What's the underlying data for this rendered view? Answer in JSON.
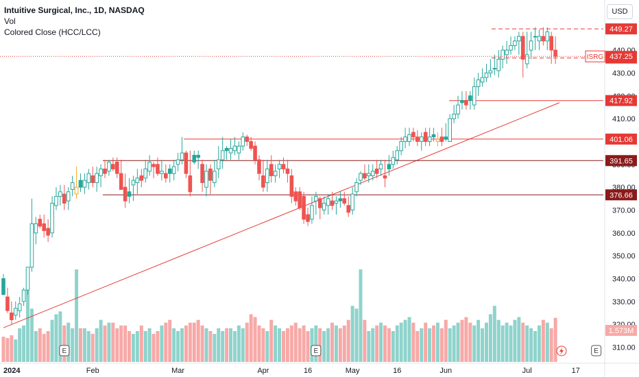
{
  "legend": {
    "title": "Intuitive Surgical, Inc., 1D, NASDAQ",
    "vol": "Vol",
    "indicator": "Colored Close (HCC/LCC)"
  },
  "currency": "USD",
  "colors": {
    "up": "#26a69a",
    "down": "#ef5350",
    "orange": "#f5a623",
    "vol_up": "#8fd3cc",
    "vol_down": "#f7a9a7",
    "level_red": "#e53935",
    "level_dark": "#8b1a1a",
    "axis_text": "#131722"
  },
  "chart_data": {
    "type": "candlestick",
    "title": "Intuitive Surgical, Inc., 1D, NASDAQ",
    "y_range": [
      307,
      457
    ],
    "y_ticks": [
      310,
      320,
      330,
      340,
      350,
      360,
      370,
      380,
      390,
      400,
      410,
      420,
      430,
      440
    ],
    "x_tick_labels": [
      "2024",
      "Feb",
      "Mar",
      "Apr",
      "16",
      "May",
      "16",
      "Jun",
      "Jul",
      "17"
    ],
    "x_tick_dates": [
      "2024-01-02",
      "2024-02-01",
      "2024-03-01",
      "2024-04-01",
      "2024-04-16",
      "2024-05-01",
      "2024-05-16",
      "2024-06-03",
      "2024-07-01",
      "2024-07-17"
    ],
    "first_date": "2024-01-02",
    "opens": [
      340,
      332,
      325,
      324,
      326,
      330,
      335,
      345,
      360,
      366,
      364,
      362,
      360,
      372,
      376,
      377,
      374,
      379,
      377,
      383,
      380,
      382,
      385,
      382,
      385,
      388,
      387,
      390,
      391,
      386,
      380,
      378,
      381,
      382,
      385,
      384,
      387,
      390,
      390,
      386,
      386,
      388,
      386,
      390,
      392,
      395,
      385,
      394,
      394,
      390,
      380,
      388,
      382,
      388,
      392,
      397,
      395,
      396,
      395,
      398,
      402,
      400,
      398,
      392,
      385,
      382,
      390,
      385,
      388,
      390,
      388,
      385,
      378,
      378,
      376,
      368,
      366,
      374,
      375,
      370,
      372,
      374,
      373,
      375,
      375,
      372,
      370,
      378,
      383,
      386,
      385,
      385,
      388,
      388,
      385,
      390,
      390,
      392,
      396,
      400,
      400,
      404,
      402,
      400,
      404,
      400,
      403,
      400,
      402,
      402,
      400,
      410,
      412,
      418,
      418,
      420,
      416,
      424,
      426,
      428,
      430,
      432,
      431,
      436,
      438,
      440,
      442,
      444,
      446,
      434,
      440,
      446,
      444,
      446,
      444,
      446,
      440
    ],
    "highs": [
      342,
      336,
      330,
      330,
      332,
      336,
      342,
      375,
      367,
      368,
      368,
      366,
      376,
      380,
      381,
      381,
      380,
      385,
      389,
      386,
      386,
      388,
      389,
      389,
      390,
      392,
      392,
      393,
      393,
      392,
      386,
      384,
      385,
      388,
      388,
      392,
      394,
      391,
      393,
      392,
      390,
      390,
      392,
      395,
      402,
      396,
      396,
      396,
      396,
      392,
      390,
      390,
      392,
      398,
      402,
      398,
      401,
      402,
      400,
      404,
      403,
      402,
      400,
      394,
      392,
      392,
      394,
      390,
      392,
      393,
      392,
      388,
      380,
      380,
      378,
      371,
      376,
      378,
      376,
      376,
      377,
      378,
      376,
      378,
      378,
      376,
      380,
      384,
      387,
      390,
      390,
      390,
      392,
      392,
      392,
      394,
      396,
      398,
      402,
      406,
      406,
      406,
      405,
      404,
      406,
      406,
      406,
      404,
      406,
      408,
      412,
      416,
      420,
      422,
      422,
      422,
      428,
      430,
      432,
      434,
      436,
      438,
      440,
      442,
      444,
      446,
      446,
      448,
      448,
      448,
      448,
      450,
      449,
      450,
      450,
      448,
      446
    ],
    "lows": [
      335,
      325,
      320,
      322,
      323,
      328,
      333,
      343,
      355,
      362,
      358,
      356,
      358,
      370,
      372,
      370,
      370,
      376,
      375,
      378,
      377,
      379,
      380,
      378,
      380,
      384,
      385,
      387,
      384,
      380,
      371,
      373,
      374,
      377,
      380,
      382,
      385,
      384,
      385,
      383,
      382,
      382,
      383,
      387,
      390,
      384,
      376,
      390,
      388,
      378,
      376,
      377,
      380,
      384,
      388,
      392,
      392,
      394,
      392,
      396,
      398,
      396,
      390,
      383,
      378,
      378,
      382,
      382,
      384,
      386,
      382,
      373,
      372,
      370,
      364,
      363,
      364,
      368,
      366,
      368,
      368,
      370,
      368,
      371,
      372,
      367,
      368,
      376,
      381,
      383,
      382,
      383,
      384,
      385,
      380,
      385,
      388,
      390,
      394,
      397,
      398,
      400,
      398,
      396,
      398,
      398,
      400,
      398,
      398,
      400,
      400,
      408,
      410,
      414,
      414,
      414,
      414,
      420,
      424,
      426,
      428,
      429,
      428,
      432,
      434,
      438,
      440,
      438,
      428,
      432,
      436,
      440,
      440,
      442,
      440,
      434,
      434
    ],
    "closes": [
      333,
      326,
      322,
      327,
      329,
      335,
      345,
      364,
      364,
      363,
      361,
      359,
      373,
      376,
      378,
      373,
      378,
      382,
      380,
      380,
      383,
      386,
      382,
      386,
      388,
      386,
      391,
      388,
      386,
      379,
      374,
      376,
      383,
      384,
      383,
      388,
      391,
      389,
      386,
      387,
      384,
      386,
      389,
      392,
      395,
      386,
      378,
      391,
      393,
      382,
      387,
      383,
      387,
      392,
      396,
      396,
      397,
      398,
      398,
      402,
      400,
      397,
      392,
      386,
      380,
      388,
      385,
      387,
      390,
      388,
      386,
      376,
      374,
      371,
      366,
      365,
      372,
      376,
      371,
      373,
      375,
      372,
      374,
      374,
      373,
      369,
      377,
      382,
      386,
      384,
      386,
      387,
      386,
      390,
      384,
      388,
      393,
      396,
      400,
      402,
      403,
      402,
      400,
      402,
      400,
      402,
      402,
      401,
      400,
      401,
      410,
      412,
      416,
      417,
      416,
      418,
      424,
      427,
      428,
      430,
      431,
      432,
      436,
      440,
      440,
      442,
      444,
      446,
      436,
      438,
      444,
      446,
      446,
      444,
      448,
      440,
      437.25
    ],
    "volume": [
      0.9,
      0.85,
      0.95,
      0.8,
      1.2,
      1.3,
      3.2,
      1.9,
      1.1,
      1.2,
      1.0,
      1.1,
      1.5,
      1.7,
      1.8,
      1.3,
      1.4,
      1.2,
      3.3,
      1.2,
      1.2,
      1.1,
      1.0,
      1.2,
      1.5,
      1.3,
      1.4,
      1.4,
      1.2,
      1.3,
      1.3,
      1.1,
      1.0,
      1.1,
      1.3,
      1.1,
      1.2,
      1.0,
      1.1,
      1.3,
      1.4,
      1.5,
      1.2,
      1.1,
      1.2,
      1.3,
      1.4,
      1.4,
      1.5,
      1.3,
      1.2,
      1.1,
      1.0,
      1.2,
      1.1,
      1.2,
      1.2,
      1.1,
      1.3,
      1.2,
      1.4,
      1.7,
      1.6,
      1.3,
      1.2,
      1.1,
      1.5,
      1.3,
      1.2,
      1.1,
      1.2,
      1.3,
      1.4,
      1.2,
      1.3,
      1.1,
      1.2,
      1.3,
      1.2,
      1.1,
      1.2,
      1.4,
      1.3,
      1.2,
      1.3,
      1.5,
      2.0,
      1.9,
      3.3,
      1.5,
      1.1,
      1.2,
      1.3,
      1.4,
      1.3,
      1.2,
      1.1,
      1.3,
      1.4,
      1.5,
      1.6,
      1.4,
      1.1,
      1.2,
      1.4,
      1.2,
      1.3,
      1.4,
      1.2,
      1.5,
      1.2,
      1.3,
      1.4,
      1.5,
      1.6,
      1.4,
      1.3,
      1.5,
      1.2,
      1.4,
      1.7,
      2.0,
      1.5,
      1.3,
      1.4,
      1.3,
      1.5,
      1.6,
      1.4,
      1.3,
      1.2,
      1.1,
      1.3,
      1.5,
      1.4,
      1.2,
      1.573
    ],
    "trendline": {
      "from": {
        "date": "2024-01-02",
        "value": 318.5
      },
      "to": {
        "date": "2024-07-11",
        "value": 417
      }
    },
    "levels": [
      {
        "value": 449.27,
        "label": "449.27",
        "style": "dashed"
      },
      {
        "value": 436.53,
        "label": "436.53",
        "style": "dashed"
      },
      {
        "value": 417.92,
        "label": "417.92",
        "style": "solid"
      },
      {
        "value": 401.06,
        "label": "401.06",
        "style": "solid"
      },
      {
        "value": 391.65,
        "label": "391.65",
        "style": "solid-dark"
      },
      {
        "value": 376.66,
        "label": "376.66",
        "style": "solid-dark"
      }
    ],
    "last_price": {
      "value": 437.25,
      "label": "437.25",
      "symbol": "ISRG"
    },
    "volume_label": "1.573M",
    "event_markers": [
      {
        "date": "2024-01-23",
        "label": "E"
      },
      {
        "date": "2024-04-18",
        "label": "E"
      },
      {
        "date": "2024-07-18",
        "label": "E"
      }
    ]
  }
}
